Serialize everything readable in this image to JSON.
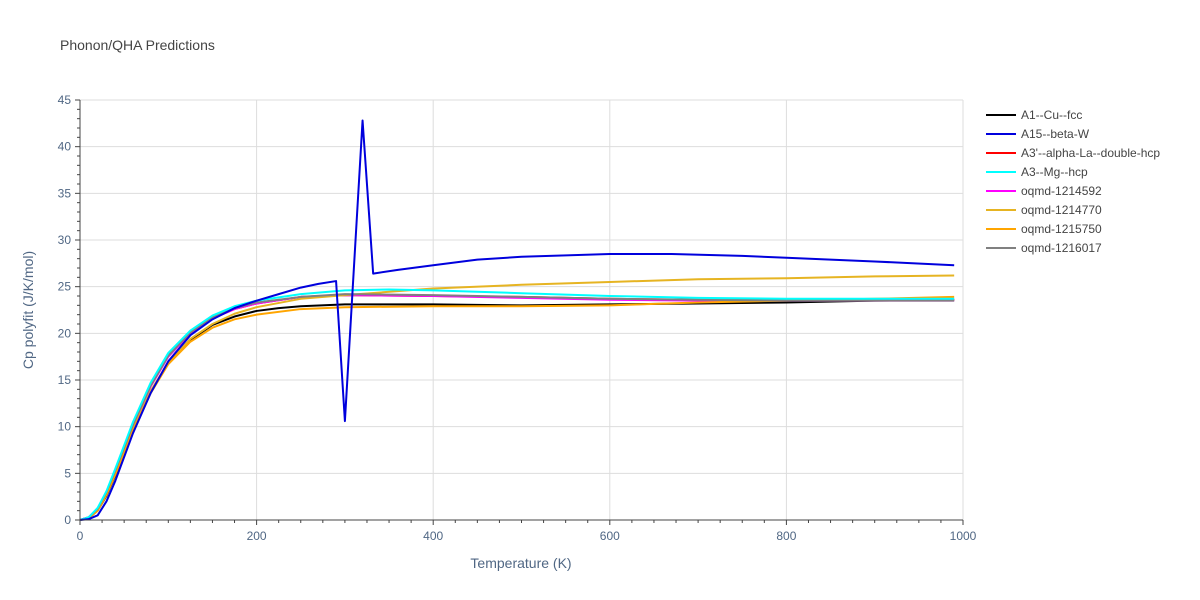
{
  "chart_data": {
    "type": "line",
    "title": "Phonon/QHA Predictions",
    "xlabel": "Temperature (K)",
    "ylabel": "Cp polyfit (J/K/mol)",
    "xlim": [
      0,
      1000
    ],
    "ylim": [
      0,
      45
    ],
    "x_ticks": [
      "0",
      "200",
      "400",
      "600",
      "800",
      "1000"
    ],
    "y_ticks": [
      "0",
      "5",
      "10",
      "15",
      "20",
      "25",
      "30",
      "35",
      "40",
      "45"
    ],
    "grid": true,
    "legend_position": "right",
    "series": [
      {
        "name": "A1--Cu--fcc",
        "color": "#000000",
        "x": [
          0,
          10,
          20,
          30,
          40,
          60,
          80,
          100,
          125,
          150,
          175,
          200,
          225,
          250,
          300,
          400,
          500,
          600,
          700,
          800,
          900,
          990
        ],
        "y": [
          0,
          0.2,
          1.0,
          2.6,
          4.8,
          9.6,
          13.6,
          16.8,
          19.3,
          20.9,
          21.8,
          22.4,
          22.7,
          22.9,
          23.1,
          23.1,
          23.0,
          23.1,
          23.2,
          23.3,
          23.5,
          23.6
        ]
      },
      {
        "name": "A15--beta-W",
        "color": "#0000dd",
        "x": [
          0,
          10,
          20,
          30,
          40,
          60,
          80,
          100,
          125,
          150,
          175,
          200,
          225,
          250,
          270,
          290,
          300,
          320,
          332,
          360,
          400,
          450,
          500,
          600,
          670,
          750,
          800,
          900,
          990
        ],
        "y": [
          0,
          0.1,
          0.5,
          2.0,
          4.2,
          9.3,
          13.6,
          17.0,
          19.8,
          21.5,
          22.7,
          23.5,
          24.2,
          24.9,
          25.3,
          25.6,
          10.6,
          42.8,
          26.4,
          26.8,
          27.3,
          27.9,
          28.2,
          28.5,
          28.5,
          28.3,
          28.1,
          27.7,
          27.3
        ]
      },
      {
        "name": "A3'--alpha-La--double-hcp",
        "color": "#ff0000",
        "x": [
          0,
          10,
          20,
          30,
          40,
          60,
          80,
          100,
          125,
          150,
          175,
          200,
          250,
          300,
          400,
          500,
          600,
          700,
          800,
          900,
          990
        ],
        "y": [
          0,
          0.3,
          1.2,
          3.0,
          5.3,
          10.2,
          14.4,
          17.6,
          20.0,
          21.6,
          22.6,
          23.2,
          23.9,
          24.1,
          24.0,
          23.9,
          23.7,
          23.6,
          23.6,
          23.6,
          23.6
        ]
      },
      {
        "name": "A3--Mg--hcp",
        "color": "#00ffff",
        "x": [
          0,
          10,
          20,
          30,
          40,
          60,
          80,
          100,
          125,
          150,
          175,
          200,
          250,
          300,
          350,
          400,
          500,
          600,
          700,
          800,
          900,
          990
        ],
        "y": [
          0,
          0.3,
          1.3,
          3.1,
          5.5,
          10.5,
          14.7,
          17.9,
          20.3,
          21.9,
          22.9,
          23.5,
          24.2,
          24.6,
          24.7,
          24.6,
          24.3,
          24.0,
          23.8,
          23.7,
          23.7,
          23.7
        ]
      },
      {
        "name": "oqmd-1214592",
        "color": "#ff00ff",
        "x": [
          0,
          10,
          20,
          30,
          40,
          60,
          80,
          100,
          125,
          150,
          175,
          200,
          250,
          300,
          400,
          500,
          600,
          700,
          800,
          900,
          990
        ],
        "y": [
          0,
          0.3,
          1.2,
          3.0,
          5.3,
          10.1,
          14.3,
          17.5,
          20.0,
          21.6,
          22.6,
          23.2,
          23.9,
          24.1,
          24.0,
          23.8,
          23.6,
          23.5,
          23.5,
          23.5,
          23.5
        ]
      },
      {
        "name": "oqmd-1214770",
        "color": "#e6b422",
        "x": [
          0,
          10,
          20,
          30,
          40,
          60,
          80,
          100,
          125,
          150,
          175,
          200,
          250,
          300,
          400,
          500,
          600,
          700,
          800,
          900,
          990
        ],
        "y": [
          0,
          0.2,
          1.0,
          2.7,
          4.9,
          9.7,
          13.8,
          16.9,
          19.4,
          21.0,
          22.1,
          22.8,
          23.7,
          24.1,
          24.8,
          25.2,
          25.5,
          25.8,
          25.9,
          26.1,
          26.2
        ]
      },
      {
        "name": "oqmd-1215750",
        "color": "#ffa500",
        "x": [
          0,
          10,
          20,
          30,
          40,
          60,
          80,
          100,
          125,
          150,
          175,
          200,
          250,
          300,
          400,
          500,
          600,
          700,
          800,
          900,
          990
        ],
        "y": [
          0,
          0.2,
          1.0,
          2.7,
          4.9,
          9.6,
          13.6,
          16.7,
          19.1,
          20.6,
          21.5,
          22.0,
          22.6,
          22.8,
          22.9,
          22.9,
          23.0,
          23.3,
          23.5,
          23.7,
          23.9
        ]
      },
      {
        "name": "oqmd-1216017",
        "color": "#808080",
        "x": [
          0,
          10,
          20,
          30,
          40,
          60,
          80,
          100,
          125,
          150,
          175,
          200,
          250,
          300,
          400,
          500,
          600,
          700,
          800,
          900,
          990
        ],
        "y": [
          0,
          0.3,
          1.2,
          3.0,
          5.3,
          10.2,
          14.4,
          17.6,
          20.1,
          21.7,
          22.7,
          23.3,
          23.9,
          24.2,
          24.1,
          23.9,
          23.7,
          23.6,
          23.5,
          23.5,
          23.5
        ]
      }
    ]
  }
}
